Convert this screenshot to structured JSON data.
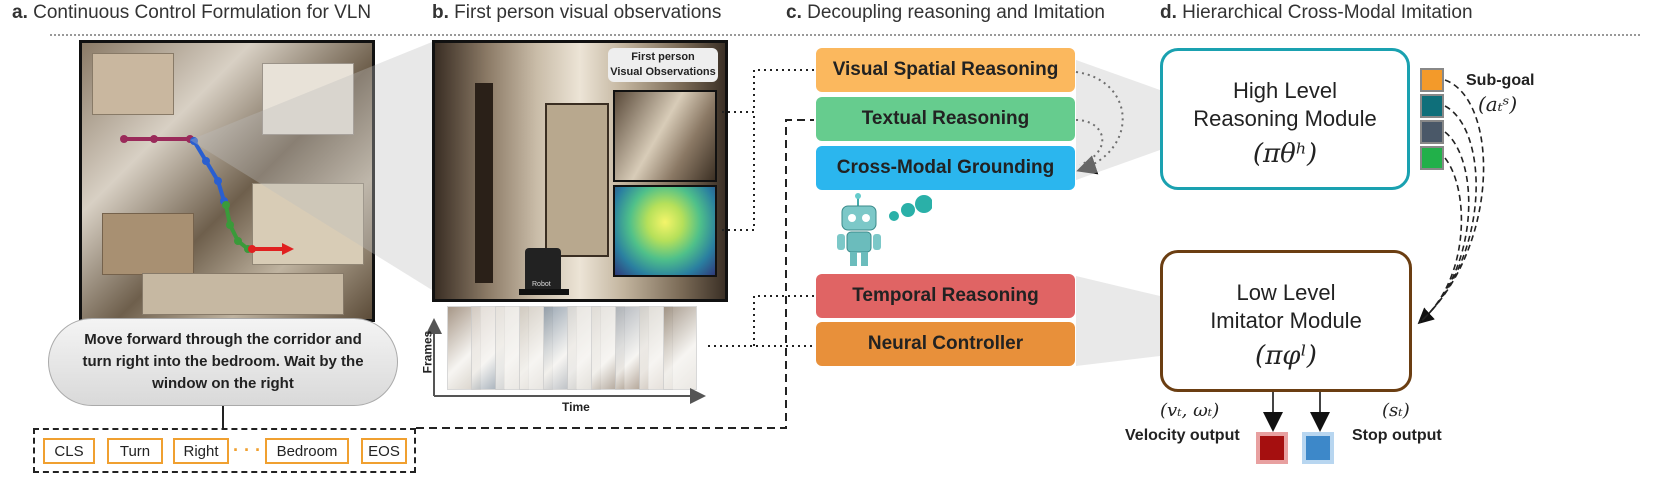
{
  "headers": {
    "a": {
      "letter": "a.",
      "text": "Continuous Control Formulation for VLN"
    },
    "b": {
      "letter": "b.",
      "text": "First person visual observations"
    },
    "c": {
      "letter": "c.",
      "text": "Decoupling reasoning and Imitation"
    },
    "d": {
      "letter": "d.",
      "text": "Hierarchical Cross-Modal Imitation"
    }
  },
  "panel_a": {
    "instruction": "Move forward through the corridor and turn right into the bedroom. Wait by the window on the right",
    "tokens": [
      "CLS",
      "Turn",
      "Right",
      "Bedroom",
      "EOS"
    ],
    "ellipsis": "· · ·",
    "path_colors": {
      "start": "#9a2a5a",
      "middle": "#2a5fd0",
      "turn": "#3a9a3a",
      "end": "#e02020"
    }
  },
  "panel_b": {
    "fpv_label_line1": "First person",
    "fpv_label_line2": "Visual Observations",
    "robot_label": "Robot",
    "axis_y": "Frames",
    "axis_x": "Time"
  },
  "panel_c": {
    "boxes": [
      {
        "label": "Visual Spatial Reasoning",
        "color": "#fbb85e"
      },
      {
        "label": "Textual Reasoning",
        "color": "#66cc8e"
      },
      {
        "label": "Cross-Modal Grounding",
        "color": "#2bb6ee"
      },
      {
        "label": "Temporal Reasoning",
        "color": "#e06464"
      },
      {
        "label": "Neural Controller",
        "color": "#e8903a"
      }
    ]
  },
  "panel_d": {
    "high": {
      "line1": "High Level",
      "line2": "Reasoning Module",
      "policy": "(πθʰ)",
      "border": "#1aa1b0"
    },
    "low": {
      "line1": "Low Level",
      "line2": "Imitator Module",
      "policy": "(πφˡ)",
      "border": "#6b3e12"
    },
    "subgoal_label": "Sub-goal",
    "subgoal_symbol": "(aₜˢ)",
    "subgoal_colors": [
      "#f39a2a",
      "#0f6f7a",
      "#4a5868",
      "#22b04a"
    ],
    "velocity_symbol": "(vₜ, ωₜ)",
    "velocity_label": "Velocity output",
    "velocity_color": "#a50f0f",
    "stop_symbol": "(sₜ)",
    "stop_label": "Stop output",
    "stop_color": "#3d88c9"
  }
}
